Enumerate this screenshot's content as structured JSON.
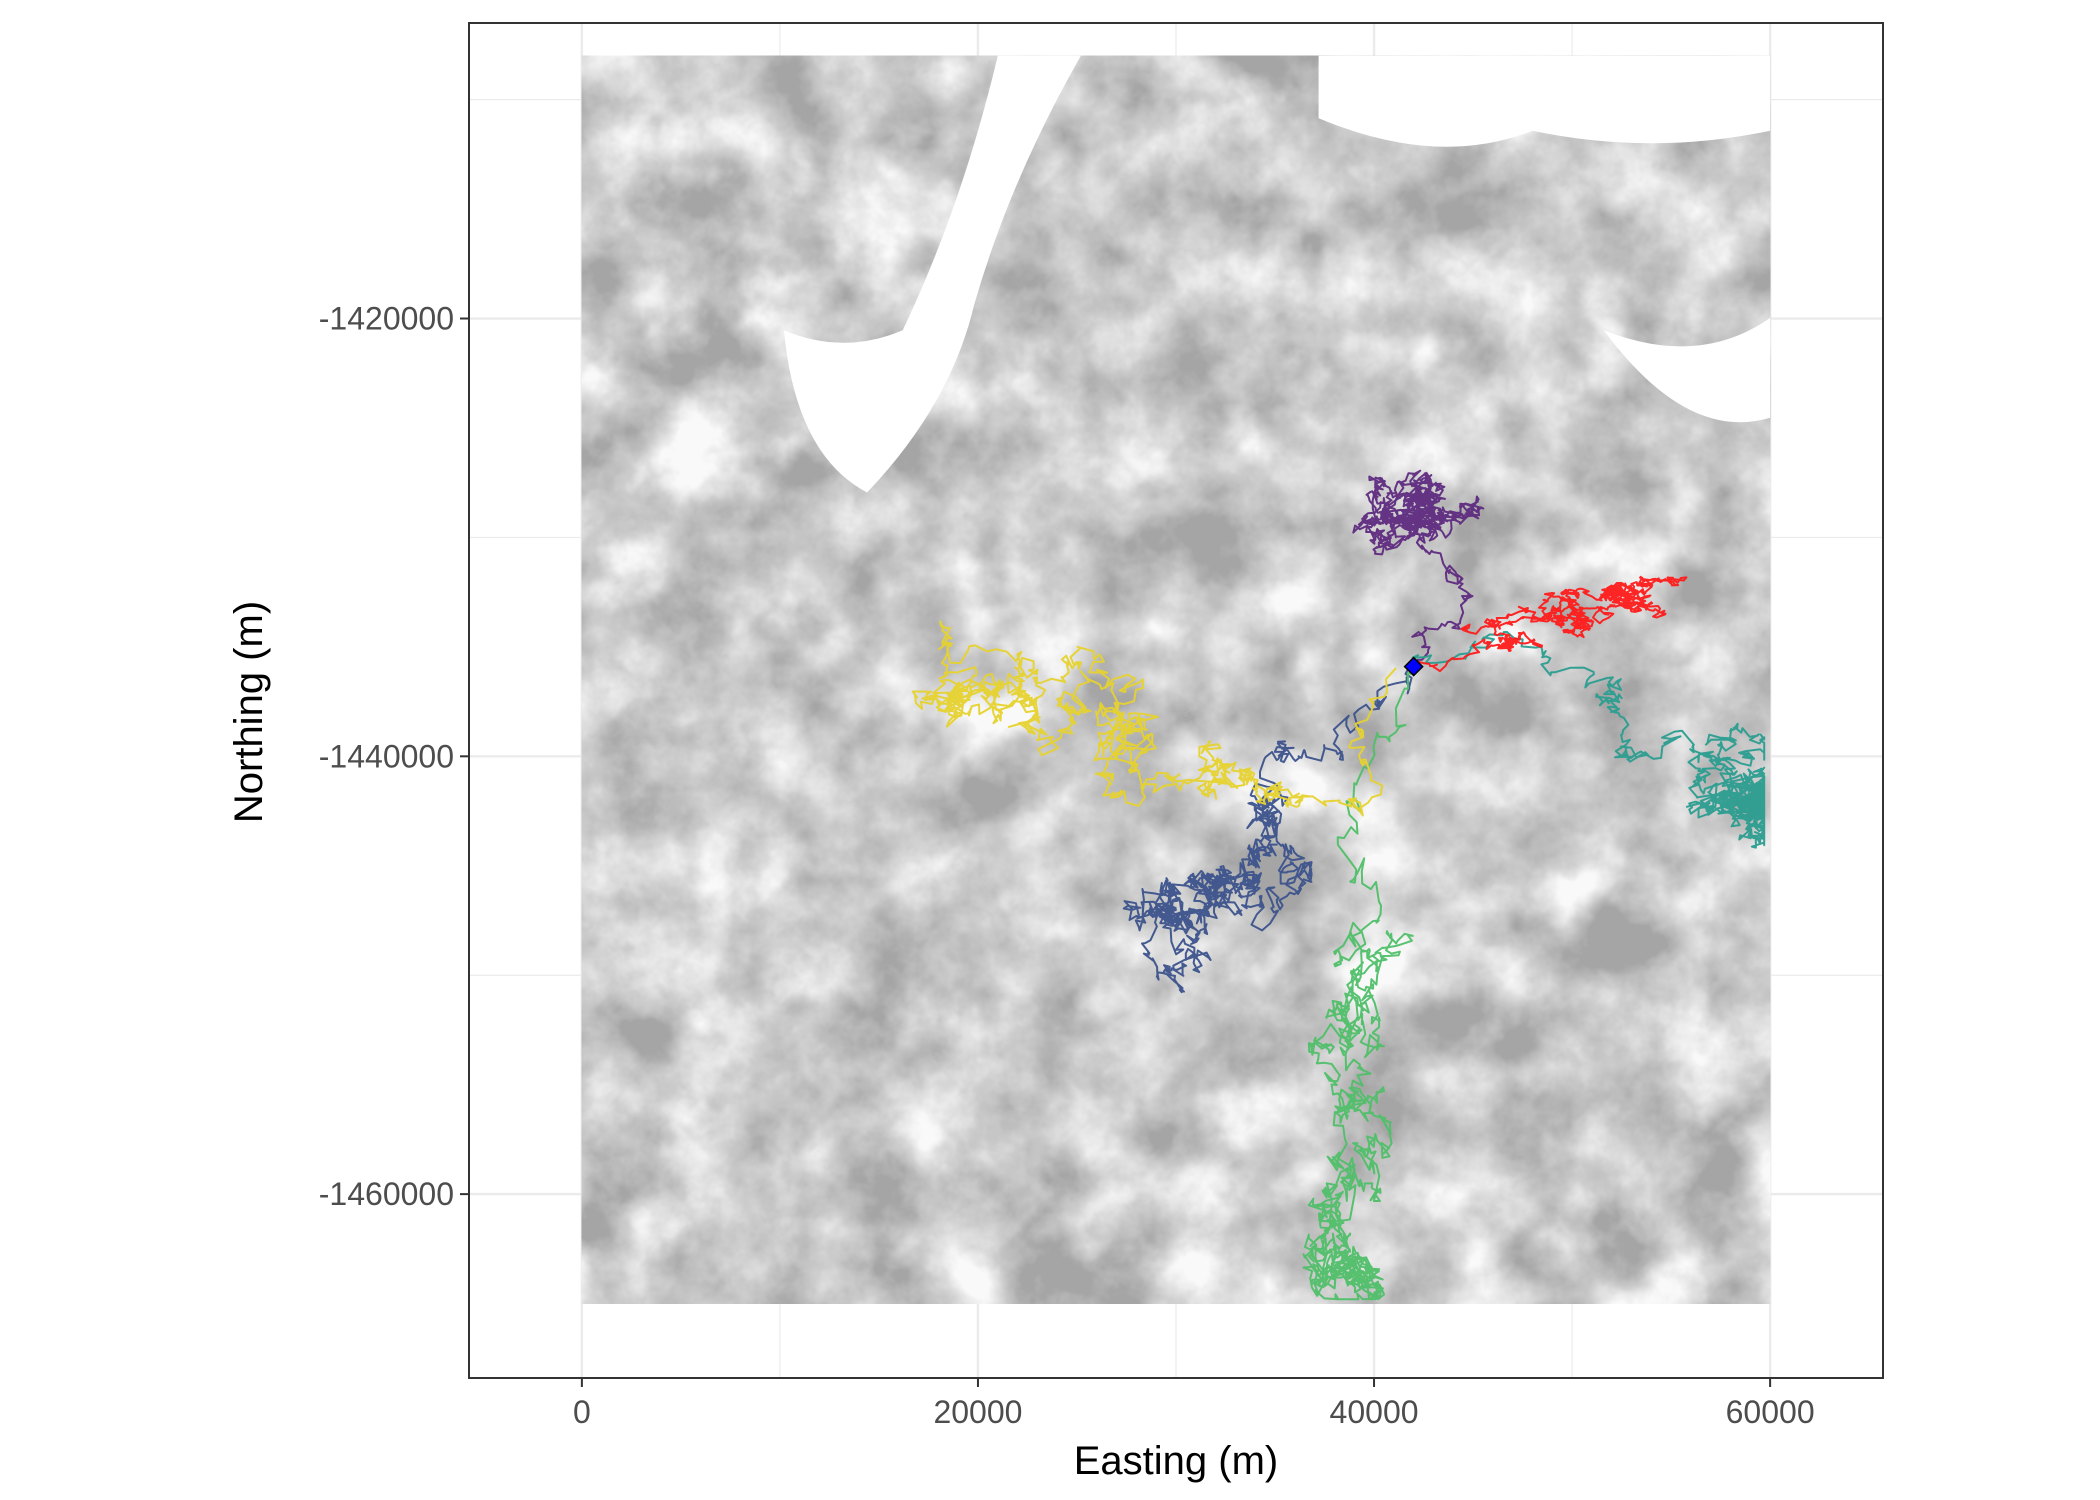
{
  "chart_data": {
    "type": "map",
    "xlabel": "Easting (m)",
    "ylabel": "Northing (m)",
    "xlim": [
      -5700,
      65700
    ],
    "ylim": [
      -1468400,
      -1406500
    ],
    "x_ticks": [
      0,
      20000,
      40000,
      60000
    ],
    "x_tick_labels": [
      "0",
      "20000",
      "40000",
      "60000"
    ],
    "y_ticks": [
      -1420000,
      -1440000,
      -1460000
    ],
    "y_tick_labels": [
      "-1420000",
      "-1440000",
      "-1460000"
    ],
    "grid": true,
    "legend": "none",
    "basemap": {
      "description": "grayscale raster",
      "extent": {
        "xmin": 0,
        "xmax": 60000,
        "ymin": -1465000,
        "ymax": -1408000
      }
    },
    "start_point": {
      "x": 42000,
      "y": -1435900,
      "color": "#0000ff",
      "shape": "diamond"
    },
    "series": [
      {
        "color": "#5e2a80",
        "center": [
          43500,
          -1430500
        ],
        "spread": [
          2800,
          2200
        ],
        "pull": [
          -2500,
          2500
        ]
      },
      {
        "color": "#3b528b",
        "center": [
          35000,
          -1442500
        ],
        "spread": [
          3200,
          3200
        ],
        "pull": [
          -5500,
          -5500
        ]
      },
      {
        "color": "#2a9d8f",
        "center": [
          53000,
          -1439000
        ],
        "spread": [
          4500,
          2600
        ],
        "pull": [
          14000,
          -4500
        ]
      },
      {
        "color": "#4fbf69",
        "center": [
          39500,
          -1449000
        ],
        "spread": [
          3400,
          4000
        ],
        "pull": [
          -1500,
          -17000
        ]
      },
      {
        "color": "#e6d22e",
        "center": [
          35000,
          -1443000
        ],
        "spread": [
          4000,
          3000
        ],
        "pull": [
          -16000,
          7000
        ]
      },
      {
        "color": "#ff1a1a",
        "center": [
          46000,
          -1434500
        ],
        "spread": [
          2400,
          1300
        ],
        "pull": [
          8000,
          2000
        ]
      }
    ]
  }
}
